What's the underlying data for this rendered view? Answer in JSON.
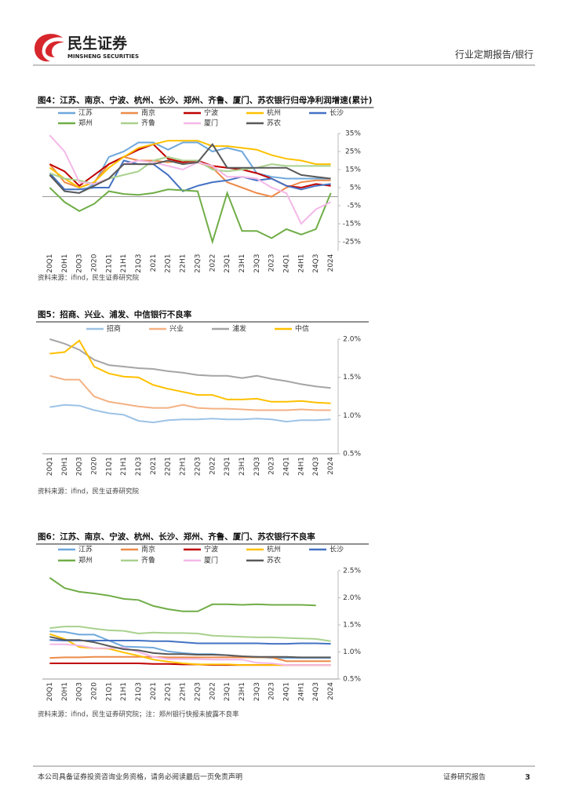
{
  "header": {
    "brand": "民生证券",
    "brand_en": "MINSHENG SECURITIES",
    "report_type": "行业定期报告/银行"
  },
  "chart_data": [
    {
      "type": "line",
      "title": "图4：江苏、南京、宁波、杭州、长沙、郑州、齐鲁、厦门、苏农银行归母净利润增速(累计)",
      "source": "资料来源：ifind，民生证券研究院",
      "categories": [
        "20Q1",
        "20H1",
        "20Q3",
        "2020",
        "21Q1",
        "21H1",
        "21Q3",
        "2021",
        "22Q1",
        "22H1",
        "22Q3",
        "2022",
        "23Q1",
        "23H1",
        "23Q3",
        "2023",
        "24Q1",
        "24H1",
        "24Q3",
        "2024"
      ],
      "ylim": [
        -30,
        35
      ],
      "yticks": [
        {
          "value": 35,
          "label": "35%"
        },
        {
          "value": 25,
          "label": "25%"
        },
        {
          "value": 15,
          "label": "15%"
        },
        {
          "value": 5,
          "label": "5%"
        },
        {
          "value": -5,
          "label": "-5%"
        },
        {
          "value": -15,
          "label": "-15%"
        },
        {
          "value": -25,
          "label": "-25%"
        }
      ],
      "series": [
        {
          "name": "江苏",
          "color": "#6fa8dc",
          "values": [
            12,
            3,
            2,
            7,
            22,
            25,
            30,
            30,
            26,
            30,
            30,
            25,
            27,
            25,
            13,
            11,
            10,
            10,
            10,
            10
          ]
        },
        {
          "name": "南京",
          "color": "#ed8b4a",
          "values": [
            18,
            8,
            5,
            8,
            18,
            22,
            20,
            20,
            19,
            20,
            19,
            16,
            8,
            5,
            2,
            0,
            5,
            8,
            9,
            9
          ]
        },
        {
          "name": "宁波",
          "color": "#c00000",
          "values": [
            18,
            14,
            6,
            12,
            18,
            22,
            26,
            29,
            21,
            19,
            20,
            17,
            16,
            15,
            13,
            10,
            6,
            5,
            7,
            6
          ]
        },
        {
          "name": "杭州",
          "color": "#ffc000",
          "values": [
            16,
            10,
            5,
            8,
            16,
            22,
            27,
            29,
            31,
            31,
            31,
            28,
            28,
            27,
            26,
            23,
            21,
            20,
            18,
            18
          ]
        },
        {
          "name": "长沙",
          "color": "#4472c4",
          "values": [
            13,
            4,
            4,
            5,
            5,
            20,
            18,
            18,
            12,
            3,
            6,
            8,
            9,
            11,
            9,
            10,
            6,
            4,
            6,
            7
          ]
        },
        {
          "name": "郑州",
          "color": "#70ad47",
          "values": [
            5,
            -3,
            -8,
            -4,
            3,
            1.5,
            1,
            2,
            4,
            3.5,
            3,
            -25,
            2,
            -19,
            -19,
            -23,
            -18,
            -21,
            -18,
            2
          ]
        },
        {
          "name": "齐鲁",
          "color": "#a9d18e",
          "values": [
            13,
            10,
            9,
            7,
            10,
            12,
            14,
            20,
            22,
            20,
            20,
            15,
            14,
            15,
            16,
            18,
            17,
            17,
            17,
            17
          ]
        },
        {
          "name": "厦门",
          "color": "#f4b8e8",
          "values": [
            34,
            25,
            8,
            7,
            10,
            18,
            20,
            19,
            17,
            15,
            19,
            17,
            11,
            11,
            10,
            5,
            2,
            -15,
            -7,
            -3
          ]
        },
        {
          "name": "苏农",
          "color": "#595959",
          "values": [
            12,
            3,
            2,
            6,
            10,
            18,
            18,
            18,
            20,
            18,
            19,
            29,
            16,
            16,
            16,
            16,
            16,
            12,
            11,
            10
          ]
        }
      ]
    },
    {
      "type": "line",
      "title": "图5：招商、兴业、浦发、中信银行不良率",
      "source": "资料来源：ifind，民生证券研究院",
      "categories": [
        "20Q1",
        "20H1",
        "20Q3",
        "2020",
        "21Q1",
        "21H1",
        "21Q3",
        "2021",
        "22Q1",
        "22H1",
        "22Q3",
        "2022",
        "23Q1",
        "23H1",
        "23Q3",
        "2023",
        "24Q1",
        "24H1",
        "24Q3",
        "2024"
      ],
      "ylim": [
        0.5,
        2.0
      ],
      "yticks": [
        {
          "value": 2.0,
          "label": "2.0%"
        },
        {
          "value": 1.5,
          "label": "1.5%"
        },
        {
          "value": 1.0,
          "label": "1.0%"
        },
        {
          "value": 0.5,
          "label": "0.5%"
        }
      ],
      "series": [
        {
          "name": "招商",
          "color": "#9dc3e6",
          "values": [
            1.11,
            1.14,
            1.13,
            1.07,
            1.03,
            1.01,
            0.93,
            0.91,
            0.94,
            0.95,
            0.95,
            0.96,
            0.95,
            0.95,
            0.96,
            0.95,
            0.92,
            0.94,
            0.94,
            0.95
          ]
        },
        {
          "name": "兴业",
          "color": "#f4b183",
          "values": [
            1.52,
            1.47,
            1.47,
            1.25,
            1.18,
            1.15,
            1.12,
            1.1,
            1.1,
            1.14,
            1.1,
            1.09,
            1.09,
            1.08,
            1.07,
            1.07,
            1.07,
            1.08,
            1.07,
            1.07
          ]
        },
        {
          "name": "浦发",
          "color": "#a5a5a5",
          "values": [
            2.0,
            1.94,
            1.86,
            1.73,
            1.66,
            1.64,
            1.62,
            1.61,
            1.58,
            1.56,
            1.53,
            1.52,
            1.52,
            1.49,
            1.52,
            1.48,
            1.45,
            1.41,
            1.38,
            1.36
          ]
        },
        {
          "name": "中信",
          "color": "#ffc000",
          "values": [
            1.81,
            1.83,
            1.98,
            1.64,
            1.55,
            1.51,
            1.5,
            1.4,
            1.35,
            1.31,
            1.27,
            1.27,
            1.21,
            1.21,
            1.22,
            1.18,
            1.18,
            1.19,
            1.17,
            1.16
          ]
        }
      ]
    },
    {
      "type": "line",
      "title": "图6：江苏、南京、宁波、杭州、长沙、郑州、齐鲁、厦门、苏农银行不良率",
      "source": "资料来源：ifind，民生证券研究院；注：郑州银行快报未披露不良率",
      "categories": [
        "20Q1",
        "20H1",
        "20Q3",
        "2020",
        "21Q1",
        "21H1",
        "21Q3",
        "2021",
        "22Q1",
        "22H1",
        "22Q3",
        "2022",
        "23Q1",
        "23H1",
        "23Q3",
        "2023",
        "24Q1",
        "24H1",
        "24Q3",
        "2024"
      ],
      "ylim": [
        0.5,
        2.5
      ],
      "yticks": [
        {
          "value": 2.5,
          "label": "2.5%"
        },
        {
          "value": 2.0,
          "label": "2.0%"
        },
        {
          "value": 1.5,
          "label": "1.5%"
        },
        {
          "value": 1.0,
          "label": "1.0%"
        },
        {
          "value": 0.5,
          "label": "0.5%"
        }
      ],
      "series": [
        {
          "name": "江苏",
          "color": "#6fa8dc",
          "values": [
            1.38,
            1.37,
            1.32,
            1.32,
            1.21,
            1.1,
            1.09,
            1.08,
            1.01,
            0.98,
            0.96,
            0.96,
            0.94,
            0.91,
            0.91,
            0.89,
            0.89,
            0.89,
            0.89,
            0.89
          ]
        },
        {
          "name": "南京",
          "color": "#ed8b4a",
          "values": [
            0.89,
            0.9,
            0.9,
            0.91,
            0.91,
            0.91,
            0.91,
            0.91,
            0.9,
            0.9,
            0.9,
            0.9,
            0.9,
            0.9,
            0.9,
            0.9,
            0.83,
            0.83,
            0.83,
            0.83
          ]
        },
        {
          "name": "宁波",
          "color": "#c00000",
          "values": [
            0.79,
            0.79,
            0.79,
            0.79,
            0.79,
            0.79,
            0.79,
            0.78,
            0.78,
            0.77,
            0.77,
            0.76,
            0.76,
            0.76,
            0.76,
            0.76,
            0.76,
            0.76,
            0.76,
            0.76
          ]
        },
        {
          "name": "杭州",
          "color": "#ffc000",
          "values": [
            1.33,
            1.24,
            1.09,
            1.07,
            1.06,
            0.99,
            0.93,
            0.86,
            0.82,
            0.79,
            0.77,
            0.77,
            0.77,
            0.76,
            0.76,
            0.76,
            0.76,
            0.76,
            0.76,
            0.76
          ]
        },
        {
          "name": "长沙",
          "color": "#4472c4",
          "values": [
            1.22,
            1.21,
            1.21,
            1.21,
            1.21,
            1.21,
            1.21,
            1.2,
            1.2,
            1.18,
            1.16,
            1.16,
            1.16,
            1.16,
            1.16,
            1.15,
            1.15,
            1.16,
            1.16,
            1.15
          ]
        },
        {
          "name": "郑州",
          "color": "#70ad47",
          "values": [
            2.37,
            2.18,
            2.11,
            2.08,
            2.04,
            1.98,
            1.96,
            1.85,
            1.79,
            1.75,
            1.75,
            1.88,
            1.88,
            1.87,
            1.88,
            1.87,
            1.87,
            1.87,
            1.86,
            null
          ]
        },
        {
          "name": "齐鲁",
          "color": "#a9d18e",
          "values": [
            1.44,
            1.47,
            1.47,
            1.43,
            1.4,
            1.39,
            1.34,
            1.36,
            1.35,
            1.35,
            1.34,
            1.3,
            1.29,
            1.28,
            1.27,
            1.27,
            1.26,
            1.25,
            1.24,
            1.2
          ]
        },
        {
          "name": "厦门",
          "color": "#f4b8e8",
          "values": [
            1.14,
            1.14,
            1.12,
            1.07,
            1.07,
            1.08,
            1.0,
            0.91,
            0.87,
            0.87,
            0.87,
            0.86,
            0.86,
            0.86,
            0.8,
            0.79,
            0.76,
            0.76,
            0.76,
            0.76
          ]
        },
        {
          "name": "苏农",
          "color": "#595959",
          "values": [
            1.28,
            1.22,
            1.22,
            1.18,
            1.11,
            1.05,
            1.03,
            0.98,
            0.96,
            0.96,
            0.95,
            0.95,
            0.94,
            0.92,
            0.91,
            0.91,
            0.91,
            0.9,
            0.9,
            0.9
          ]
        }
      ]
    }
  ],
  "footer": {
    "disclaimer": "本公司具备证券投资咨询业务资格，请务必阅读最后一页免责声明",
    "label": "证券研究报告",
    "page": "3"
  }
}
